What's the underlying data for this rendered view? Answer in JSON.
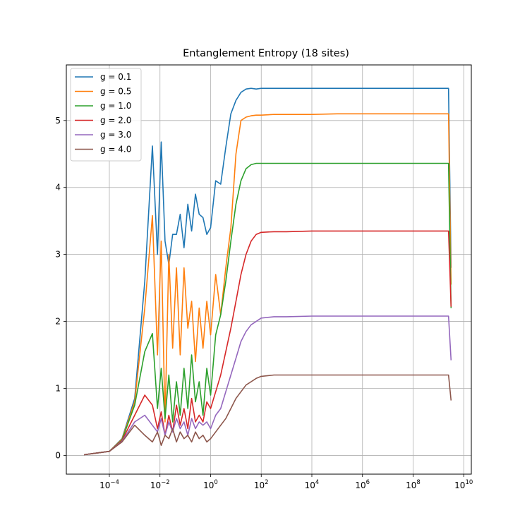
{
  "chart_data": {
    "type": "line",
    "title": "Entanglement Entropy (18 sites)",
    "xlabel": "",
    "ylabel": "",
    "xscale": "log",
    "xlim_exponent": [
      -5.7,
      10.3
    ],
    "ylim": [
      -0.28,
      5.83
    ],
    "grid": true,
    "legend_position": "top-left",
    "x_ticks": [
      {
        "base": "10",
        "exp": "−4",
        "value": -4
      },
      {
        "base": "10",
        "exp": "−2",
        "value": -2
      },
      {
        "base": "10",
        "exp": "0",
        "value": 0
      },
      {
        "base": "10",
        "exp": "2",
        "value": 2
      },
      {
        "base": "10",
        "exp": "4",
        "value": 4
      },
      {
        "base": "10",
        "exp": "6",
        "value": 6
      },
      {
        "base": "10",
        "exp": "8",
        "value": 8
      },
      {
        "base": "10",
        "exp": "10",
        "value": 10
      }
    ],
    "y_ticks": [
      {
        "label": "0",
        "value": 0
      },
      {
        "label": "1",
        "value": 1
      },
      {
        "label": "2",
        "value": 2
      },
      {
        "label": "3",
        "value": 3
      },
      {
        "label": "4",
        "value": 4
      },
      {
        "label": "5",
        "value": 5
      }
    ],
    "x_exponent_values": [
      -5,
      -4,
      -3.5,
      -3,
      -2.6,
      -2.3,
      -2.1,
      -1.95,
      -1.8,
      -1.65,
      -1.5,
      -1.35,
      -1.2,
      -1.05,
      -0.9,
      -0.75,
      -0.6,
      -0.45,
      -0.3,
      -0.15,
      0,
      0.2,
      0.4,
      0.6,
      0.8,
      1,
      1.2,
      1.4,
      1.6,
      1.8,
      2,
      2.5,
      3,
      4,
      5,
      6,
      7,
      8,
      9,
      9.4,
      9.5
    ],
    "series": [
      {
        "name": "g = 0.1",
        "color": "#1f77b4",
        "values": [
          0.01,
          0.06,
          0.25,
          0.85,
          2.6,
          4.62,
          3.0,
          4.68,
          3.2,
          2.85,
          3.3,
          3.3,
          3.6,
          3.1,
          3.75,
          3.35,
          3.9,
          3.6,
          3.55,
          3.3,
          3.4,
          4.1,
          4.05,
          4.6,
          5.1,
          5.3,
          5.42,
          5.47,
          5.48,
          5.47,
          5.48,
          5.48,
          5.48,
          5.48,
          5.48,
          5.48,
          5.48,
          5.48,
          5.48,
          5.48,
          2.8
        ]
      },
      {
        "name": "g = 0.5",
        "color": "#ff7f0e",
        "values": [
          0.01,
          0.06,
          0.24,
          0.8,
          2.2,
          3.58,
          1.5,
          3.2,
          0.5,
          3.0,
          1.6,
          2.8,
          1.5,
          2.8,
          1.9,
          2.3,
          1.4,
          2.2,
          1.6,
          2.3,
          1.8,
          2.7,
          2.1,
          2.8,
          3.4,
          4.5,
          5.0,
          5.05,
          5.07,
          5.08,
          5.08,
          5.09,
          5.09,
          5.09,
          5.1,
          5.1,
          5.1,
          5.1,
          5.1,
          5.1,
          2.55
        ]
      },
      {
        "name": "g = 1.0",
        "color": "#2ca02c",
        "values": [
          0.01,
          0.06,
          0.23,
          0.75,
          1.55,
          1.82,
          0.7,
          1.3,
          0.55,
          1.2,
          0.5,
          1.1,
          0.6,
          1.3,
          0.7,
          1.5,
          0.8,
          1.1,
          0.6,
          1.3,
          0.9,
          1.8,
          2.1,
          2.6,
          3.2,
          3.75,
          4.1,
          4.28,
          4.34,
          4.36,
          4.36,
          4.36,
          4.36,
          4.36,
          4.36,
          4.36,
          4.36,
          4.36,
          4.36,
          4.36,
          2.2
        ]
      },
      {
        "name": "g = 2.0",
        "color": "#d62728",
        "values": [
          0.01,
          0.06,
          0.22,
          0.6,
          0.9,
          0.75,
          0.4,
          0.65,
          0.3,
          0.6,
          0.35,
          0.75,
          0.45,
          0.7,
          0.4,
          0.85,
          0.5,
          0.6,
          0.5,
          0.8,
          0.7,
          0.95,
          1.2,
          1.55,
          1.9,
          2.3,
          2.7,
          3.0,
          3.2,
          3.3,
          3.33,
          3.34,
          3.34,
          3.35,
          3.35,
          3.35,
          3.35,
          3.35,
          3.35,
          3.35,
          2.22
        ]
      },
      {
        "name": "g = 3.0",
        "color": "#9467bd",
        "values": [
          0.01,
          0.06,
          0.21,
          0.5,
          0.6,
          0.45,
          0.35,
          0.55,
          0.3,
          0.5,
          0.35,
          0.55,
          0.4,
          0.5,
          0.3,
          0.55,
          0.4,
          0.5,
          0.45,
          0.5,
          0.4,
          0.6,
          0.7,
          0.95,
          1.2,
          1.45,
          1.7,
          1.85,
          1.95,
          2.0,
          2.05,
          2.07,
          2.07,
          2.08,
          2.08,
          2.08,
          2.08,
          2.08,
          2.08,
          2.08,
          1.42
        ]
      },
      {
        "name": "g = 4.0",
        "color": "#8c564b",
        "values": [
          0.01,
          0.06,
          0.2,
          0.45,
          0.3,
          0.2,
          0.35,
          0.15,
          0.3,
          0.25,
          0.4,
          0.2,
          0.35,
          0.25,
          0.3,
          0.2,
          0.35,
          0.25,
          0.3,
          0.2,
          0.25,
          0.35,
          0.45,
          0.55,
          0.7,
          0.85,
          0.95,
          1.05,
          1.1,
          1.15,
          1.18,
          1.2,
          1.2,
          1.2,
          1.2,
          1.2,
          1.2,
          1.2,
          1.2,
          1.2,
          0.82
        ]
      }
    ]
  }
}
